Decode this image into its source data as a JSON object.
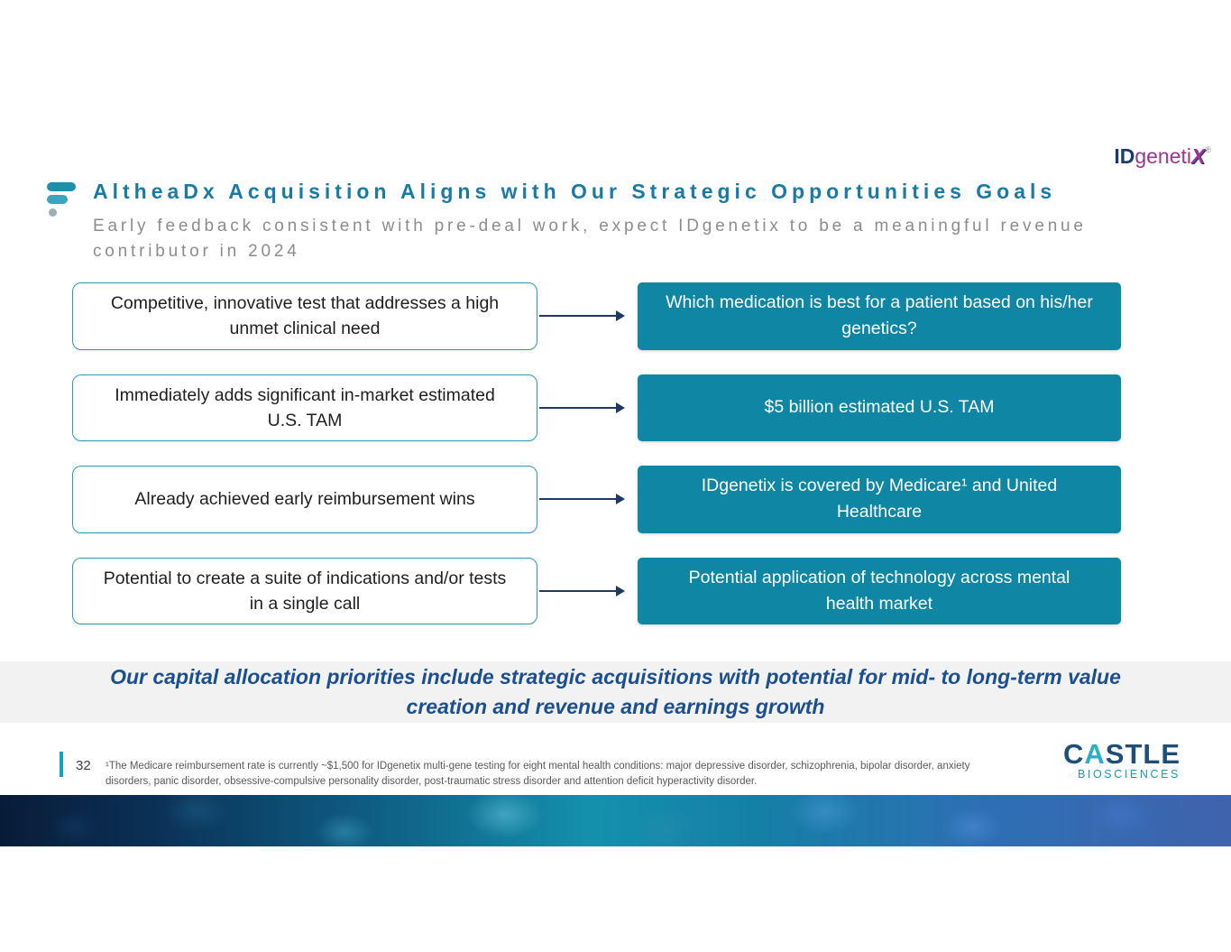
{
  "brand_logo": {
    "id": "ID",
    "geneti": "geneti",
    "x": "X",
    "registered": "®"
  },
  "header": {
    "title": "AltheaDx Acquisition Aligns with Our Strategic Opportunities Goals",
    "subtitle": "Early feedback consistent with pre-deal work, expect IDgenetix to be a meaningful revenue contributor in 2024"
  },
  "rows": [
    {
      "left": "Competitive, innovative test that addresses a high unmet clinical need",
      "right": "Which medication is best for a patient based on his/her genetics?"
    },
    {
      "left": "Immediately adds significant in-market estimated U.S. TAM",
      "right": "$5 billion estimated U.S. TAM"
    },
    {
      "left": "Already achieved early reimbursement wins",
      "right": "IDgenetix is covered by Medicare¹ and United Healthcare"
    },
    {
      "left": "Potential to create a suite of indications and/or tests in a single call",
      "right": "Potential application of technology across mental health market"
    }
  ],
  "banner": {
    "text": "Our capital allocation priorities include strategic acquisitions with potential for mid- to long-term value creation and revenue and earnings growth"
  },
  "footer": {
    "page_number": "32",
    "footnote": "¹The Medicare reimbursement rate is currently ~$1,500 for IDgenetix multi-gene testing for eight mental health conditions: major depressive disorder, schizophrenia, bipolar disorder, anxiety disorders, panic disorder, obsessive-compulsive personality disorder, post-traumatic stress disorder and attention deficit hyperactivity disorder.",
    "brand": {
      "c": "C",
      "a": "A",
      "stle": "STLE",
      "biosciences": "BIOSCIENCES"
    }
  },
  "colors": {
    "teal_box": "#0e86a4",
    "title_teal": "#197ba5",
    "banner_blue": "#1b4f8f",
    "arrow_navy": "#1f3864",
    "logo_magenta": "#9c3493",
    "logo_navy": "#1b3a6b"
  }
}
